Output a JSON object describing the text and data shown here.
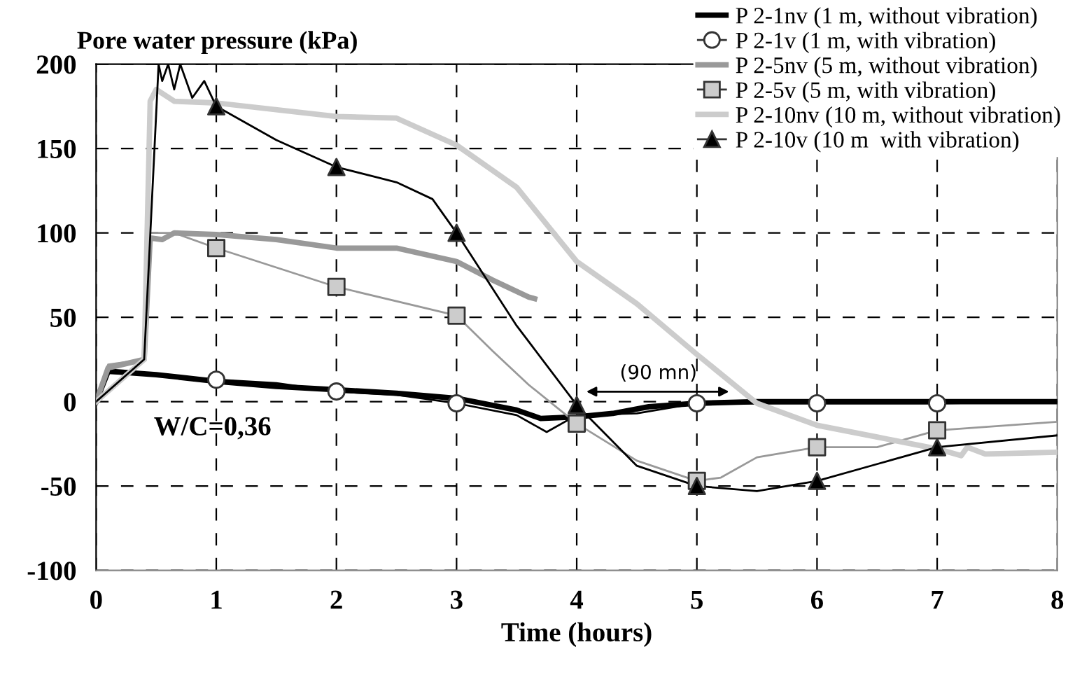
{
  "chart_data": {
    "type": "line",
    "ylabel": "Pore water pressure (kPa)",
    "xlabel": "Time (hours)",
    "xlim": [
      0,
      8
    ],
    "xticks": [
      0,
      1,
      2,
      3,
      4,
      5,
      6,
      7,
      8
    ],
    "ylim": [
      -100,
      200
    ],
    "yticks": [
      -100,
      -50,
      0,
      50,
      100,
      150,
      200
    ],
    "grid": true,
    "legend": "top right",
    "annotations": [
      "W/C=0,36",
      "(90 mn)"
    ],
    "series": [
      {
        "name": "P 2-1nv (1 m, without vibration)",
        "color": "#000000",
        "marker": "none",
        "x": [
          0,
          0.1,
          0.5,
          1,
          1.5,
          2,
          2.5,
          3,
          3.5,
          3.7,
          4,
          4.3,
          4.6,
          5,
          5.5,
          6,
          7,
          8
        ],
        "values": [
          0,
          18,
          16,
          12,
          9,
          7,
          5,
          2,
          -5,
          -10,
          -9,
          -7,
          -3,
          -1,
          0,
          0,
          0,
          0
        ]
      },
      {
        "color": "#000000",
        "marker": "none",
        "x": [
          0,
          0.1,
          0.5,
          1,
          1.5,
          2,
          2.5,
          3,
          3.5,
          3.75,
          4,
          4.5,
          5,
          6,
          7,
          8
        ],
        "values": [
          0,
          17,
          16,
          13,
          11,
          6,
          4,
          -1,
          -8,
          -18,
          -8,
          -7,
          -1,
          -1,
          -1,
          0
        ]
      },
      {
        "name": "P 2-1v (1 m, with vibration)",
        "type": "scatter",
        "color": "#ffffff",
        "marker": "circle",
        "x": [
          1,
          2,
          3,
          4,
          5,
          6,
          7
        ],
        "values": [
          13,
          6,
          -1,
          null,
          -1,
          -1,
          -1
        ]
      },
      {
        "name": "P 2-5nv (5 m, without vibration)",
        "color": "#999999",
        "marker": "none",
        "x": [
          0,
          0.1,
          0.4,
          0.45,
          0.55,
          0.65,
          1,
          1.5,
          2,
          2.5,
          3,
          3.3,
          3.6,
          3.65
        ],
        "values": [
          0,
          20,
          25,
          97,
          96,
          100,
          99,
          96,
          91,
          91,
          83,
          72,
          62,
          61
        ]
      },
      {
        "color": "#999999",
        "marker": "none",
        "x": [
          0,
          0.1,
          0.4,
          0.45,
          0.65,
          1,
          2,
          3,
          3.3,
          3.6,
          4,
          4.5,
          5,
          5.2,
          5.5,
          6,
          6.5,
          7,
          8
        ],
        "values": [
          0,
          22,
          25,
          100,
          100,
          91,
          68,
          51,
          30,
          10,
          -13,
          -35,
          -47,
          -45,
          -33,
          -27,
          -27,
          -17,
          -12
        ]
      },
      {
        "name": "P 2-5v (5 m, with vibration)",
        "type": "scatter",
        "color": "#cccccc",
        "marker": "square",
        "x": [
          1,
          2,
          3,
          4,
          5,
          6,
          7
        ],
        "values": [
          91,
          68,
          51,
          -13,
          -47,
          -27,
          -17
        ]
      },
      {
        "name": "P 2-10nv (10 m, without vibration)",
        "color": "#cccccc",
        "marker": "none",
        "x": [
          0,
          0.4,
          0.45,
          0.5,
          0.65,
          1,
          2,
          2.5,
          3,
          3.5,
          4,
          4.5,
          5,
          5.5,
          6,
          6.5,
          7,
          7.2,
          7.25,
          7.4,
          8
        ],
        "values": [
          0,
          25,
          178,
          185,
          178,
          177,
          169,
          168,
          152,
          127,
          83,
          58,
          28,
          -1,
          -14,
          -21,
          -28,
          -32,
          -27,
          -31,
          -30
        ]
      },
      {
        "color": "#000000",
        "marker": "none",
        "x": [
          0,
          0.4,
          0.52,
          0.55,
          0.6,
          0.65,
          0.7,
          0.8,
          0.9,
          1,
          1.5,
          2,
          2.5,
          2.8,
          3,
          3.5,
          4,
          4.5,
          5,
          5.5,
          6,
          6.5,
          7,
          8
        ],
        "values": [
          0,
          25,
          200,
          190,
          200,
          185,
          200,
          180,
          190,
          175,
          155,
          139,
          130,
          120,
          100,
          45,
          -2,
          -38,
          -50,
          -53,
          -47,
          -37,
          -27,
          -20
        ]
      },
      {
        "name": "P 2-10v (10 m  with vibration)",
        "type": "scatter",
        "color": "#000000",
        "marker": "triangle",
        "x": [
          1,
          2,
          3,
          4,
          5,
          6,
          7
        ],
        "values": [
          175,
          139,
          100,
          -2,
          -50,
          -47,
          -27
        ]
      }
    ]
  }
}
